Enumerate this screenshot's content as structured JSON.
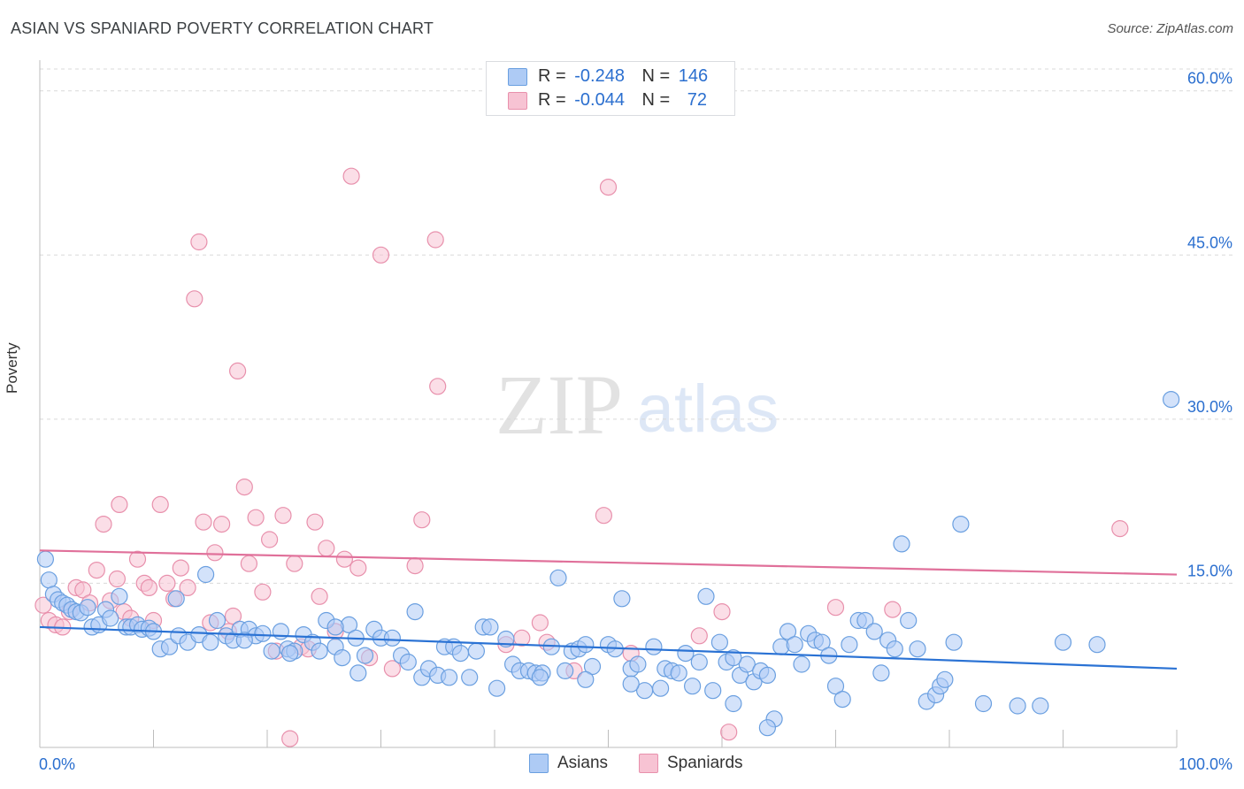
{
  "title": "ASIAN VS SPANIARD POVERTY CORRELATION CHART",
  "source": "Source: ZipAtlas.com",
  "watermark": {
    "zip": "ZIP",
    "atlas": "atlas"
  },
  "colors": {
    "asians_fill": "#aecbf5",
    "asians_stroke": "#6a9fe0",
    "asians_line": "#2a72d4",
    "spaniards_fill": "#f7c3d3",
    "spaniards_stroke": "#e890ac",
    "spaniards_line": "#e0709a",
    "axis_label": "#2b6fcf",
    "grid": "#d9d9d9"
  },
  "legend": {
    "rows": [
      {
        "r_label": "R =",
        "r_value": "-0.248",
        "n_label": "N =",
        "n_value": "146"
      },
      {
        "r_label": "R =",
        "r_value": "-0.044",
        "n_label": "N =",
        "n_value": "72"
      }
    ]
  },
  "bottom_legend": [
    "Asians",
    "Spaniards"
  ],
  "chart_data": {
    "type": "scatter",
    "title": "ASIAN VS SPANIARD POVERTY CORRELATION CHART",
    "xlabel": "",
    "ylabel": "Poverty",
    "xlim": [
      0,
      100
    ],
    "ylim": [
      0,
      62
    ],
    "x_tick_labels": [
      "0.0%",
      "100.0%"
    ],
    "y_tick_labels": [
      "15.0%",
      "30.0%",
      "45.0%",
      "60.0%"
    ],
    "y_ticks": [
      15,
      30,
      45,
      60
    ],
    "grid": "horizontal dashed",
    "legend_position": "top-center",
    "series": [
      {
        "name": "Asians",
        "r": -0.248,
        "n": 146,
        "trend": {
          "x": [
            0,
            100
          ],
          "y": [
            11.0,
            7.2
          ]
        },
        "points": [
          [
            0.5,
            17.2
          ],
          [
            0.8,
            15.3
          ],
          [
            1.2,
            14.0
          ],
          [
            1.6,
            13.5
          ],
          [
            2.0,
            13.2
          ],
          [
            2.4,
            13.0
          ],
          [
            2.8,
            12.6
          ],
          [
            3.2,
            12.4
          ],
          [
            3.6,
            12.3
          ],
          [
            4.2,
            12.8
          ],
          [
            4.6,
            11.0
          ],
          [
            5.2,
            11.2
          ],
          [
            5.8,
            12.6
          ],
          [
            6.2,
            11.8
          ],
          [
            7.0,
            13.8
          ],
          [
            7.6,
            11.0
          ],
          [
            8.0,
            11.0
          ],
          [
            8.6,
            11.2
          ],
          [
            9.0,
            10.8
          ],
          [
            9.6,
            10.9
          ],
          [
            10.0,
            10.6
          ],
          [
            10.6,
            9.0
          ],
          [
            11.4,
            9.2
          ],
          [
            12.2,
            10.2
          ],
          [
            13.0,
            9.6
          ],
          [
            14.0,
            10.3
          ],
          [
            15.0,
            9.6
          ],
          [
            15.6,
            11.6
          ],
          [
            16.4,
            10.2
          ],
          [
            17.0,
            9.8
          ],
          [
            17.6,
            10.8
          ],
          [
            18.4,
            10.8
          ],
          [
            19.0,
            10.2
          ],
          [
            19.6,
            10.4
          ],
          [
            20.4,
            8.8
          ],
          [
            21.2,
            10.6
          ],
          [
            21.8,
            9.0
          ],
          [
            22.4,
            8.8
          ],
          [
            23.2,
            10.3
          ],
          [
            24.0,
            9.6
          ],
          [
            24.6,
            8.8
          ],
          [
            25.2,
            11.6
          ],
          [
            26.0,
            9.2
          ],
          [
            26.6,
            8.2
          ],
          [
            27.2,
            11.2
          ],
          [
            27.8,
            10.0
          ],
          [
            28.6,
            8.4
          ],
          [
            29.4,
            10.8
          ],
          [
            30.0,
            10.0
          ],
          [
            31.0,
            10.0
          ],
          [
            31.8,
            8.4
          ],
          [
            32.4,
            7.8
          ],
          [
            33.0,
            12.4
          ],
          [
            33.6,
            6.4
          ],
          [
            34.2,
            7.2
          ],
          [
            35.0,
            6.6
          ],
          [
            35.6,
            9.2
          ],
          [
            36.4,
            9.2
          ],
          [
            37.0,
            8.6
          ],
          [
            37.8,
            6.4
          ],
          [
            38.4,
            8.8
          ],
          [
            39.0,
            11.0
          ],
          [
            39.6,
            11.0
          ],
          [
            40.2,
            5.4
          ],
          [
            41.0,
            9.9
          ],
          [
            41.6,
            7.6
          ],
          [
            42.2,
            7.0
          ],
          [
            43.0,
            7.0
          ],
          [
            43.6,
            6.8
          ],
          [
            44.2,
            6.8
          ],
          [
            45.0,
            9.2
          ],
          [
            45.6,
            15.5
          ],
          [
            46.2,
            7.0
          ],
          [
            46.8,
            8.8
          ],
          [
            47.4,
            9.0
          ],
          [
            48.0,
            9.4
          ],
          [
            48.6,
            7.4
          ],
          [
            50.0,
            9.4
          ],
          [
            50.6,
            9.0
          ],
          [
            51.2,
            13.6
          ],
          [
            52.0,
            7.2
          ],
          [
            52.6,
            7.6
          ],
          [
            53.2,
            5.2
          ],
          [
            54.0,
            9.2
          ],
          [
            54.6,
            5.4
          ],
          [
            55.0,
            7.2
          ],
          [
            55.6,
            7.0
          ],
          [
            56.2,
            6.8
          ],
          [
            56.8,
            8.6
          ],
          [
            57.4,
            5.6
          ],
          [
            58.0,
            7.8
          ],
          [
            58.6,
            13.8
          ],
          [
            59.2,
            5.2
          ],
          [
            59.8,
            9.6
          ],
          [
            60.4,
            7.8
          ],
          [
            61.0,
            4.0
          ],
          [
            61.6,
            6.6
          ],
          [
            62.2,
            7.6
          ],
          [
            62.8,
            6.0
          ],
          [
            63.4,
            7.0
          ],
          [
            64.0,
            6.6
          ],
          [
            64.6,
            2.6
          ],
          [
            65.2,
            9.2
          ],
          [
            65.8,
            10.6
          ],
          [
            66.4,
            9.4
          ],
          [
            67.0,
            7.6
          ],
          [
            67.6,
            10.4
          ],
          [
            68.2,
            9.8
          ],
          [
            68.8,
            9.6
          ],
          [
            69.4,
            8.4
          ],
          [
            70.0,
            5.6
          ],
          [
            70.6,
            4.4
          ],
          [
            71.2,
            9.4
          ],
          [
            72.0,
            11.6
          ],
          [
            72.6,
            11.6
          ],
          [
            73.4,
            10.6
          ],
          [
            74.0,
            6.8
          ],
          [
            74.6,
            9.8
          ],
          [
            75.2,
            9.0
          ],
          [
            75.8,
            18.6
          ],
          [
            76.4,
            11.6
          ],
          [
            77.2,
            9.0
          ],
          [
            78.0,
            4.2
          ],
          [
            78.8,
            4.8
          ],
          [
            79.2,
            5.6
          ],
          [
            79.6,
            6.2
          ],
          [
            80.4,
            9.6
          ],
          [
            81.0,
            20.4
          ],
          [
            83.0,
            4.0
          ],
          [
            86.0,
            3.8
          ],
          [
            88.0,
            3.8
          ],
          [
            90.0,
            9.6
          ],
          [
            93.0,
            9.4
          ],
          [
            99.5,
            31.8
          ],
          [
            64.0,
            1.8
          ],
          [
            61.0,
            8.2
          ],
          [
            52.0,
            5.8
          ],
          [
            48.0,
            6.2
          ],
          [
            44.0,
            6.4
          ],
          [
            36.0,
            6.4
          ],
          [
            28.0,
            6.8
          ],
          [
            26.0,
            11.0
          ],
          [
            22.0,
            8.6
          ],
          [
            18.0,
            9.8
          ],
          [
            14.6,
            15.8
          ],
          [
            12.0,
            13.6
          ]
        ]
      },
      {
        "name": "Spaniards",
        "r": -0.044,
        "n": 72,
        "trend": {
          "x": [
            0,
            100
          ],
          "y": [
            18.0,
            15.8
          ]
        },
        "points": [
          [
            0.3,
            13.0
          ],
          [
            0.8,
            11.6
          ],
          [
            1.4,
            11.2
          ],
          [
            2.0,
            11.0
          ],
          [
            2.6,
            12.4
          ],
          [
            3.2,
            14.6
          ],
          [
            3.8,
            14.4
          ],
          [
            4.4,
            13.2
          ],
          [
            5.0,
            16.2
          ],
          [
            5.6,
            20.4
          ],
          [
            6.2,
            13.4
          ],
          [
            6.8,
            15.4
          ],
          [
            7.0,
            22.2
          ],
          [
            7.4,
            12.4
          ],
          [
            8.0,
            11.8
          ],
          [
            8.6,
            17.2
          ],
          [
            9.2,
            15.0
          ],
          [
            9.6,
            14.6
          ],
          [
            10.0,
            11.6
          ],
          [
            10.6,
            22.2
          ],
          [
            11.2,
            15.0
          ],
          [
            11.8,
            13.6
          ],
          [
            12.4,
            16.4
          ],
          [
            13.0,
            14.6
          ],
          [
            13.6,
            41.0
          ],
          [
            14.0,
            46.2
          ],
          [
            14.4,
            20.6
          ],
          [
            15.0,
            11.4
          ],
          [
            15.4,
            17.8
          ],
          [
            16.0,
            20.4
          ],
          [
            16.6,
            10.6
          ],
          [
            17.0,
            12.0
          ],
          [
            17.4,
            34.4
          ],
          [
            18.0,
            23.8
          ],
          [
            18.4,
            16.8
          ],
          [
            19.0,
            21.0
          ],
          [
            19.6,
            14.2
          ],
          [
            20.2,
            19.0
          ],
          [
            20.8,
            8.8
          ],
          [
            21.4,
            21.2
          ],
          [
            22.0,
            0.8
          ],
          [
            22.4,
            16.8
          ],
          [
            23.0,
            9.2
          ],
          [
            23.6,
            9.0
          ],
          [
            24.2,
            20.6
          ],
          [
            24.6,
            13.8
          ],
          [
            25.2,
            18.2
          ],
          [
            26.0,
            10.6
          ],
          [
            26.8,
            17.2
          ],
          [
            27.4,
            52.2
          ],
          [
            28.0,
            16.4
          ],
          [
            29.0,
            8.2
          ],
          [
            30.0,
            45.0
          ],
          [
            31.0,
            7.2
          ],
          [
            33.0,
            16.6
          ],
          [
            33.6,
            20.8
          ],
          [
            34.8,
            46.4
          ],
          [
            35.0,
            33.0
          ],
          [
            41.0,
            9.4
          ],
          [
            42.4,
            10.0
          ],
          [
            44.0,
            11.4
          ],
          [
            44.6,
            9.6
          ],
          [
            47.0,
            7.0
          ],
          [
            49.6,
            21.2
          ],
          [
            50.0,
            51.2
          ],
          [
            52.0,
            8.6
          ],
          [
            58.0,
            10.2
          ],
          [
            60.0,
            12.4
          ],
          [
            60.6,
            1.4
          ],
          [
            70.0,
            12.8
          ],
          [
            75.0,
            12.6
          ],
          [
            95.0,
            20.0
          ]
        ]
      }
    ]
  }
}
